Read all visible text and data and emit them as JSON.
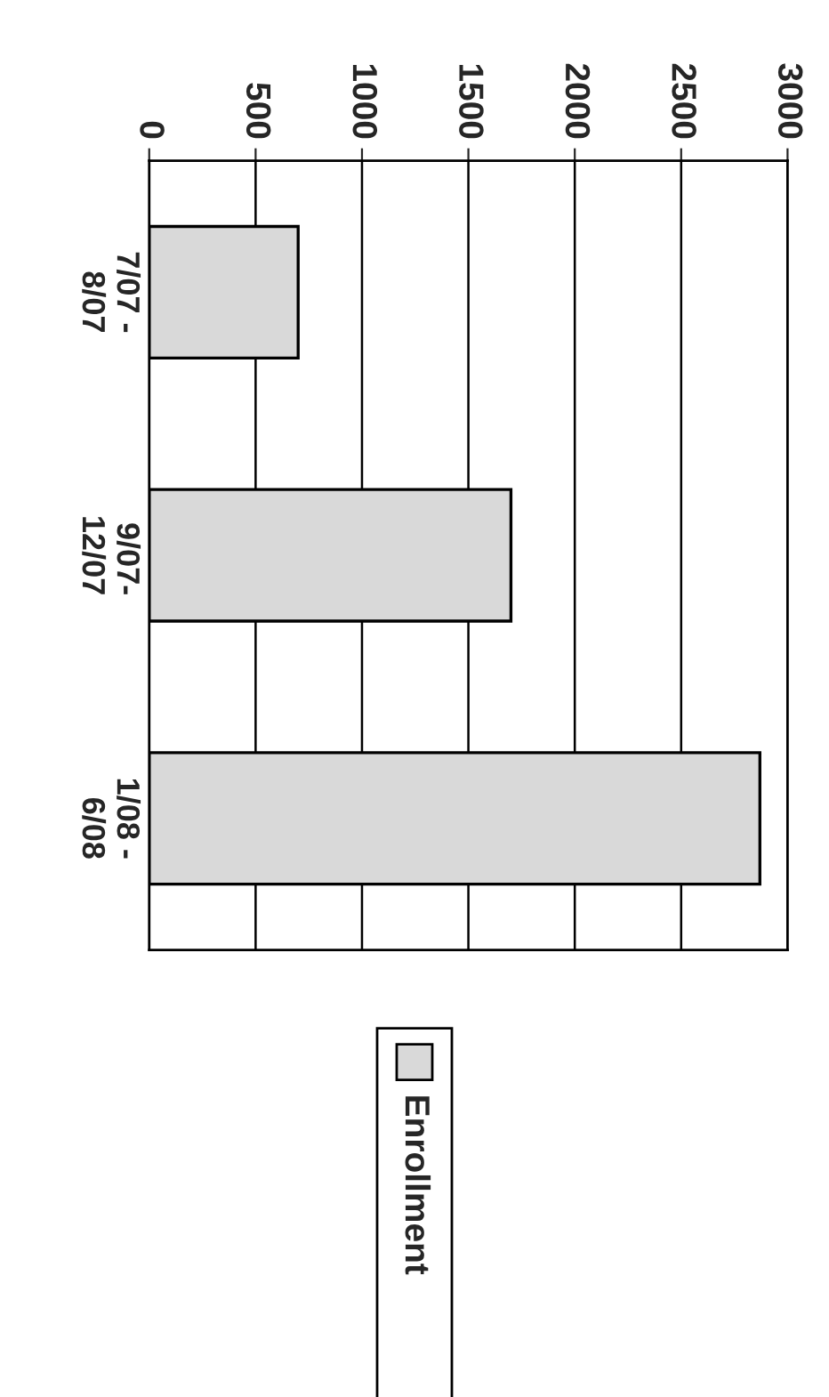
{
  "chart_data": {
    "type": "bar",
    "orientation": "horizontal",
    "categories": [
      "7/07 -\n8/07",
      "9/07-\n12/07",
      "1/08 -\n6/08"
    ],
    "series": [
      {
        "name": "Enrollment",
        "color": "#d9d9d9",
        "values": [
          700,
          1700,
          2870
        ]
      }
    ],
    "xlim": [
      0,
      3000
    ],
    "xticks": [
      0,
      500,
      1000,
      1500,
      2000,
      2500,
      3000
    ],
    "grid": "x",
    "legend": "bottom"
  }
}
